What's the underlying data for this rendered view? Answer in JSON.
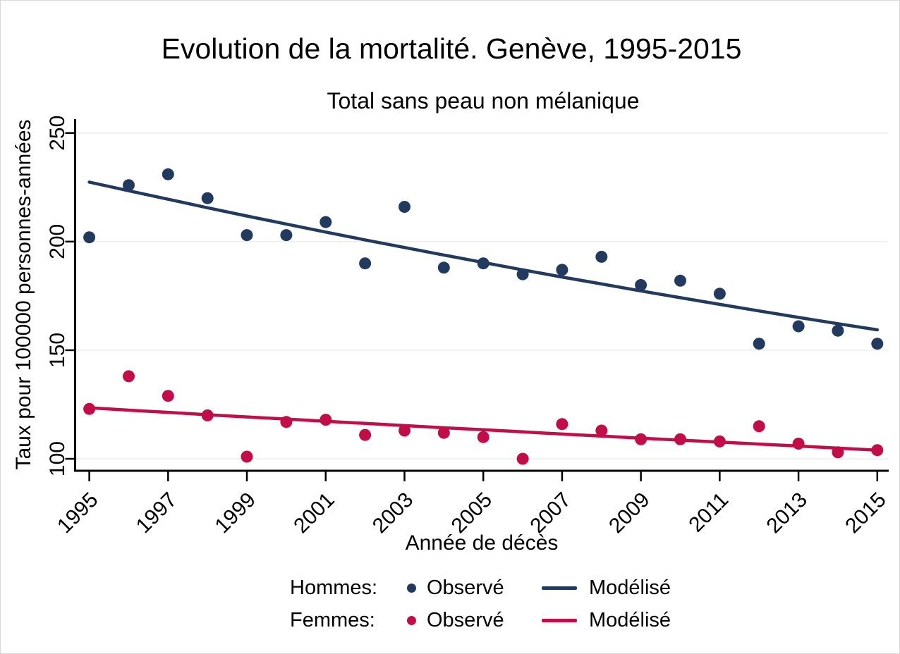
{
  "title": "Evolution de la mortalité. Genève, 1995-2015",
  "subtitle": "Total sans peau non mélanique",
  "colors": {
    "hommes": "#233a5f",
    "femmes": "#c10e49",
    "grid": "#ededed",
    "axis": "#000000"
  },
  "chart_data": {
    "type": "scatter",
    "title": "Evolution de la mortalité. Genève, 1995-2015",
    "subtitle": "Total sans peau non mélanique",
    "xlabel": "Année de décès",
    "ylabel": "Taux pour 100000 personnes-années",
    "xlim": [
      1994.64,
      2015.29
    ],
    "ylim": [
      94.5,
      256.4
    ],
    "xticks": [
      1995,
      1997,
      1999,
      2001,
      2003,
      2005,
      2007,
      2009,
      2011,
      2013,
      2015
    ],
    "yticks": [
      100,
      150,
      200,
      250
    ],
    "grid": "horizontal-light",
    "legend_position": "bottom",
    "x": [
      1995,
      1996,
      1997,
      1998,
      1999,
      2000,
      2001,
      2002,
      2003,
      2004,
      2005,
      2006,
      2007,
      2008,
      2009,
      2010,
      2011,
      2012,
      2013,
      2014,
      2015
    ],
    "series": [
      {
        "id": "hommes-observe",
        "label": "Hommes: Observé",
        "kind": "scatter",
        "color_key": "hommes",
        "values": [
          202,
          226,
          231,
          220,
          203,
          203,
          209,
          190,
          216,
          188,
          190,
          185,
          187,
          193,
          180,
          182,
          176,
          153,
          161,
          159,
          153
        ]
      },
      {
        "id": "hommes-modelise",
        "label": "Hommes: Modélisé",
        "kind": "line",
        "color_key": "hommes",
        "values": [
          227.4,
          223.4,
          219.5,
          215.6,
          211.8,
          208.1,
          204.4,
          200.8,
          197.3,
          193.8,
          190.4,
          187.0,
          183.7,
          180.5,
          177.3,
          174.2,
          171.1,
          168.1,
          165.1,
          162.2,
          159.4
        ]
      },
      {
        "id": "femmes-observe",
        "label": "Femmes: Observé",
        "kind": "scatter",
        "color_key": "femmes",
        "values": [
          123,
          138,
          129,
          120,
          101,
          117,
          118,
          111,
          113,
          112,
          110,
          100,
          116,
          113,
          109,
          109,
          108,
          115,
          107,
          103,
          104
        ]
      },
      {
        "id": "femmes-modelise",
        "label": "Femmes: Modélisé",
        "kind": "line",
        "color_key": "femmes",
        "values": [
          123.5,
          122.4,
          121.4,
          120.3,
          119.3,
          118.3,
          117.3,
          116.3,
          115.3,
          114.3,
          113.4,
          112.4,
          111.4,
          110.5,
          109.5,
          108.6,
          107.7,
          106.8,
          105.9,
          104.9,
          104.0
        ]
      }
    ]
  },
  "legend": {
    "rows": [
      {
        "group": "Hommes:",
        "observed_label": "Observé",
        "modeled_label": "Modélisé",
        "color_key": "hommes"
      },
      {
        "group": "Femmes:",
        "observed_label": "Observé",
        "modeled_label": "Modélisé",
        "color_key": "femmes"
      }
    ]
  }
}
